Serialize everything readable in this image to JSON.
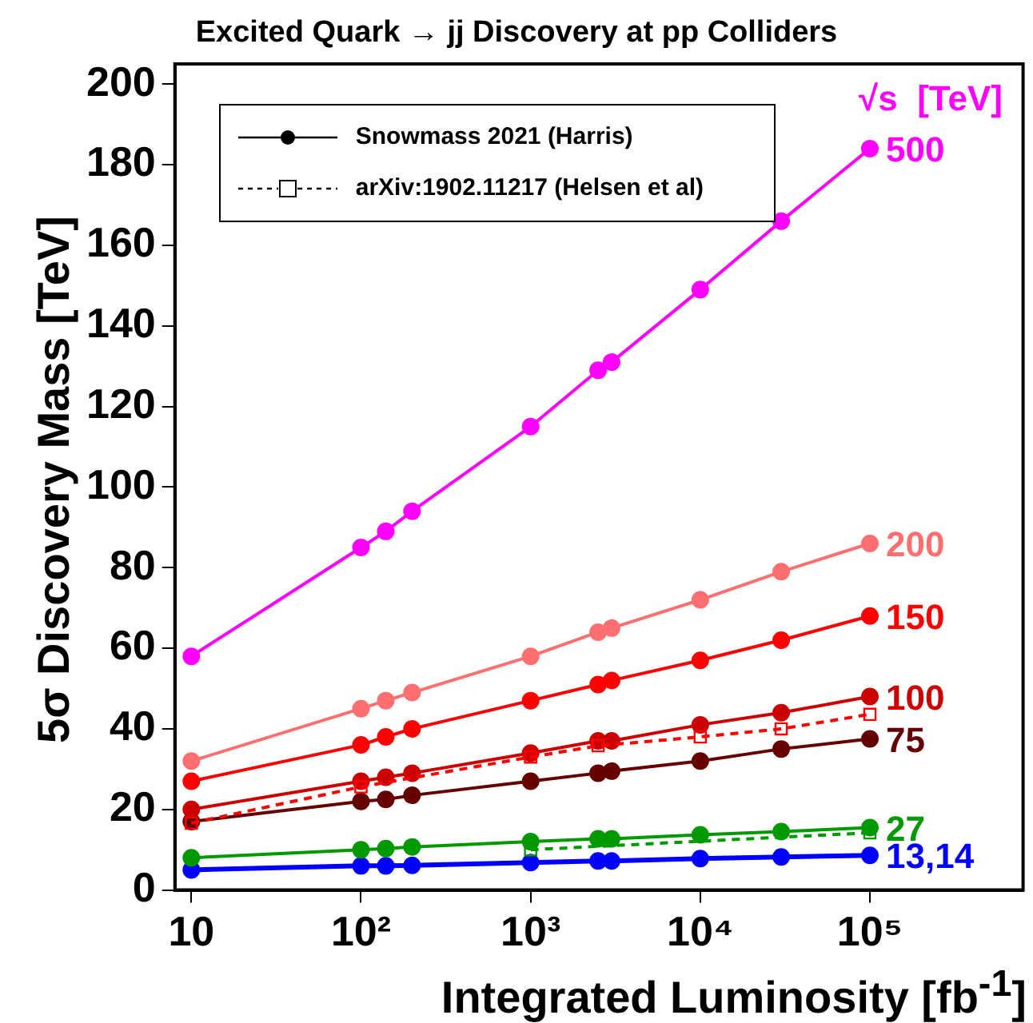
{
  "chart_data": {
    "type": "line",
    "title": "Excited Quark → jj Discovery at pp Colliders",
    "xlabel": "Integrated Luminosity [fb$^{-1}$]",
    "ylabel": "5σ Discovery Mass [TeV]",
    "legend_title": "√s  [TeV]",
    "x": [
      10,
      100,
      140,
      200,
      1000,
      2500,
      3000,
      10000,
      30000,
      100000
    ],
    "series": [
      {
        "name": "500",
        "color": "#ff00ff",
        "values": [
          58,
          85,
          89,
          94,
          115,
          129,
          131,
          149,
          166,
          184
        ]
      },
      {
        "name": "200",
        "color": "#ff6f6f",
        "values": [
          32,
          45,
          47,
          49,
          58,
          64,
          65,
          72,
          79,
          86
        ]
      },
      {
        "name": "150",
        "color": "#ff0000",
        "values": [
          27,
          36,
          38,
          40,
          47,
          51,
          52,
          57,
          62,
          68
        ]
      },
      {
        "name": "100",
        "color": "#cc0000",
        "values": [
          20,
          27,
          28,
          29,
          34,
          37,
          37,
          41,
          44,
          48
        ]
      },
      {
        "name": "75",
        "color": "#660000",
        "values": [
          17,
          22,
          22.5,
          23.5,
          27,
          29,
          29.5,
          32,
          35,
          37.5
        ]
      },
      {
        "name": "27",
        "color": "#009900",
        "values": [
          8,
          10,
          10.3,
          10.7,
          12,
          12.7,
          12.7,
          13.7,
          14.5,
          15.5
        ]
      },
      {
        "name": "13,14",
        "color": "#0000ff",
        "values": [
          5,
          6,
          6,
          6.1,
          6.8,
          7.2,
          7.2,
          7.8,
          8.2,
          8.6
        ]
      },
      {
        "color": "#ff0000",
        "marker": "square",
        "line_style": "dashed",
        "x": [
          10,
          100,
          1000,
          2500,
          10000,
          30000,
          100000
        ],
        "values": [
          16.6,
          25.6,
          33,
          35.8,
          38,
          40,
          43.6
        ]
      },
      {
        "color": "#009900",
        "marker": "square",
        "line_style": "dashed",
        "x": [
          1000,
          100000
        ],
        "values": [
          10,
          14.2
        ]
      }
    ],
    "annotations": [
      "Snowmass 2021 (Harris)",
      "arXiv:1902.11217 (Helsen et al)"
    ],
    "log": "x",
    "xlim": [
      8,
      800000
    ],
    "ylim": [
      0,
      205
    ],
    "xticks": [
      10,
      {
        "value": 100,
        "label": "10²"
      },
      {
        "value": 1000,
        "label": "10³"
      },
      {
        "value": 10000,
        "label": "10⁴"
      },
      {
        "value": 100000,
        "label": "10⁵"
      }
    ],
    "yticks": [
      0,
      20,
      40,
      60,
      80,
      100,
      120,
      140,
      160,
      180,
      200
    ],
    "grid": false,
    "legend": "right",
    "marker": "circle",
    "line_style": "solid"
  }
}
